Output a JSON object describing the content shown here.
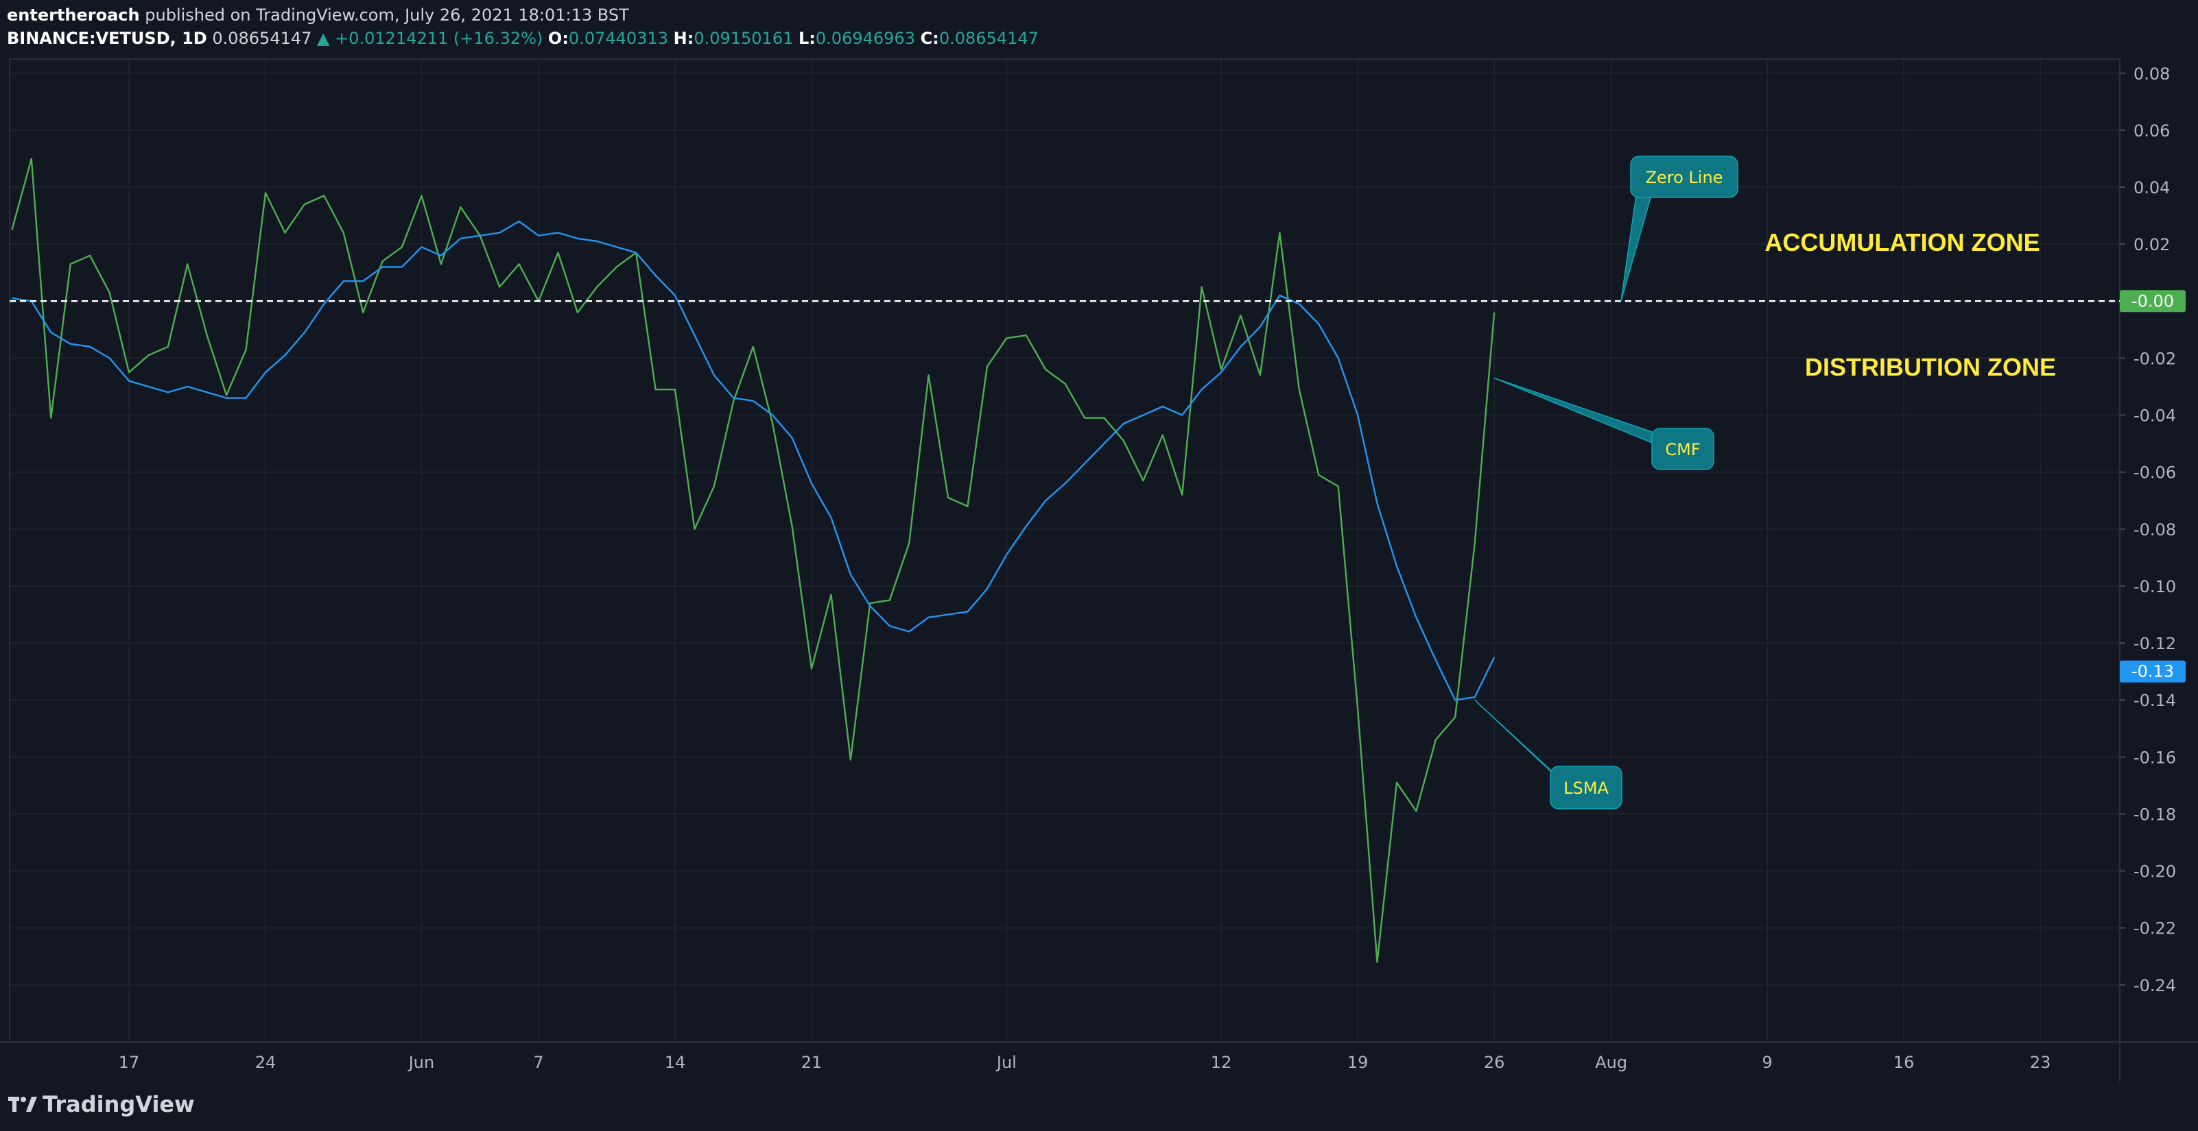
{
  "header": {
    "author": "entertheroach",
    "published": "published on TradingView.com, July 26, 2021 18:01:13 BST",
    "symbol": "BINANCE:VETUSD, 1D",
    "last": "0.08654147",
    "change": "▲ +0.01214211 (+16.32%)",
    "o_label": "O:",
    "o_value": "0.07440313",
    "h_label": "H:",
    "h_value": "0.09150161",
    "l_label": "L:",
    "l_value": "0.06946963",
    "c_label": "C:",
    "c_value": "0.08654147"
  },
  "footer": {
    "logo": "TradingView"
  },
  "colors": {
    "background": "#131722",
    "cmf": "#4caf50",
    "lsma": "#2196f3",
    "annotation": "#0e7783",
    "zone_text": "#ffeb3b",
    "zero_badge": "#4caf50",
    "lsma_badge": "#2196f3"
  },
  "chart_data": {
    "type": "line",
    "x_ticks": [
      "17",
      "24",
      "Jun",
      "7",
      "14",
      "21",
      "Jul",
      "12",
      "19",
      "26",
      "Aug",
      "9",
      "16",
      "23"
    ],
    "x_tick_days": [
      0,
      7,
      15,
      21,
      28,
      35,
      45,
      56,
      63,
      70,
      76,
      84,
      91,
      98
    ],
    "y_ticks": [
      "0.08",
      "0.06",
      "0.04",
      "0.02",
      "0.00",
      "-0.02",
      "-0.04",
      "-0.06",
      "-0.08",
      "-0.10",
      "-0.12",
      "-0.14",
      "-0.16",
      "-0.18",
      "-0.20",
      "-0.22",
      "-0.24"
    ],
    "ylim": [
      -0.26,
      0.085
    ],
    "zero_line": 0.0,
    "series": [
      {
        "name": "CMF",
        "color": "#4caf50",
        "x": [
          -6,
          -5,
          -4,
          -3,
          -2,
          -1,
          0,
          1,
          2,
          3,
          4,
          5,
          6,
          7,
          8,
          9,
          10,
          11,
          12,
          13,
          14,
          15,
          16,
          17,
          18,
          19,
          20,
          21,
          22,
          23,
          24,
          25,
          26,
          27,
          28,
          29,
          30,
          31,
          32,
          33,
          34,
          35,
          36,
          37,
          38,
          39,
          40,
          41,
          42,
          43,
          44,
          45,
          46,
          47,
          48,
          49,
          50,
          51,
          52,
          53,
          54,
          55,
          56,
          57,
          58,
          59,
          60,
          61,
          62,
          63,
          64,
          65,
          66,
          67,
          68,
          69,
          70
        ],
        "y": [
          0.025,
          0.05,
          -0.041,
          0.013,
          0.016,
          0.003,
          -0.025,
          -0.019,
          -0.016,
          0.013,
          -0.012,
          -0.033,
          -0.017,
          0.038,
          0.024,
          0.034,
          0.037,
          0.024,
          -0.004,
          0.014,
          0.019,
          0.037,
          0.013,
          0.033,
          0.023,
          0.005,
          0.013,
          0.0,
          0.017,
          -0.004,
          0.005,
          0.012,
          0.017,
          -0.031,
          -0.031,
          -0.08,
          -0.065,
          -0.035,
          -0.016,
          -0.043,
          -0.079,
          -0.129,
          -0.103,
          -0.161,
          -0.106,
          -0.105,
          -0.085,
          -0.026,
          -0.069,
          -0.072,
          -0.023,
          -0.013,
          -0.012,
          -0.024,
          -0.029,
          -0.041,
          -0.041,
          -0.049,
          -0.063,
          -0.047,
          -0.068,
          0.005,
          -0.024,
          -0.005,
          -0.026,
          0.024,
          -0.031,
          -0.061,
          -0.065,
          -0.143,
          -0.232,
          -0.169,
          -0.179,
          -0.154,
          -0.146,
          -0.085,
          -0.004
        ]
      },
      {
        "name": "LSMA",
        "color": "#2196f3",
        "x": [
          -6,
          -5,
          -4,
          -3,
          -2,
          -1,
          0,
          1,
          2,
          3,
          4,
          5,
          6,
          7,
          8,
          9,
          10,
          11,
          12,
          13,
          14,
          15,
          16,
          17,
          18,
          19,
          20,
          21,
          22,
          23,
          24,
          25,
          26,
          27,
          28,
          29,
          30,
          31,
          32,
          33,
          34,
          35,
          36,
          37,
          38,
          39,
          40,
          41,
          42,
          43,
          44,
          45,
          46,
          47,
          48,
          49,
          50,
          51,
          52,
          53,
          54,
          55,
          56,
          57,
          58,
          59,
          60,
          61,
          62,
          63,
          64,
          65,
          66,
          67,
          68,
          69,
          70
        ],
        "y": [
          0.001,
          0.0,
          -0.011,
          -0.015,
          -0.016,
          -0.02,
          -0.028,
          -0.03,
          -0.032,
          -0.03,
          -0.032,
          -0.034,
          -0.034,
          -0.025,
          -0.019,
          -0.011,
          -0.001,
          0.007,
          0.007,
          0.012,
          0.012,
          0.019,
          0.016,
          0.022,
          0.023,
          0.024,
          0.028,
          0.023,
          0.024,
          0.022,
          0.021,
          0.019,
          0.017,
          0.009,
          0.002,
          -0.012,
          -0.026,
          -0.034,
          -0.035,
          -0.04,
          -0.048,
          -0.064,
          -0.076,
          -0.096,
          -0.107,
          -0.114,
          -0.116,
          -0.111,
          -0.11,
          -0.109,
          -0.101,
          -0.089,
          -0.079,
          -0.07,
          -0.064,
          -0.057,
          -0.05,
          -0.043,
          -0.04,
          -0.037,
          -0.04,
          -0.031,
          -0.025,
          -0.016,
          -0.009,
          0.002,
          -0.001,
          -0.008,
          -0.02,
          -0.04,
          -0.071,
          -0.093,
          -0.111,
          -0.126,
          -0.14,
          -0.139,
          -0.125
        ]
      }
    ],
    "last_value_badges": [
      {
        "label": "-0.00",
        "value": 0.0,
        "color": "#4caf50"
      },
      {
        "label": "-0.13",
        "value": -0.13,
        "color": "#2196f3"
      }
    ],
    "annotations": [
      {
        "label": "Zero Line",
        "anchor_day": 76.5,
        "anchor_value": 0.0
      },
      {
        "label": "CMF",
        "anchor_day": 70,
        "anchor_value": -0.027
      },
      {
        "label": "LSMA",
        "anchor_day": 69,
        "anchor_value": -0.14
      }
    ],
    "zone_labels": [
      "ACCUMULATION ZONE",
      "DISTRIBUTION ZONE"
    ]
  }
}
